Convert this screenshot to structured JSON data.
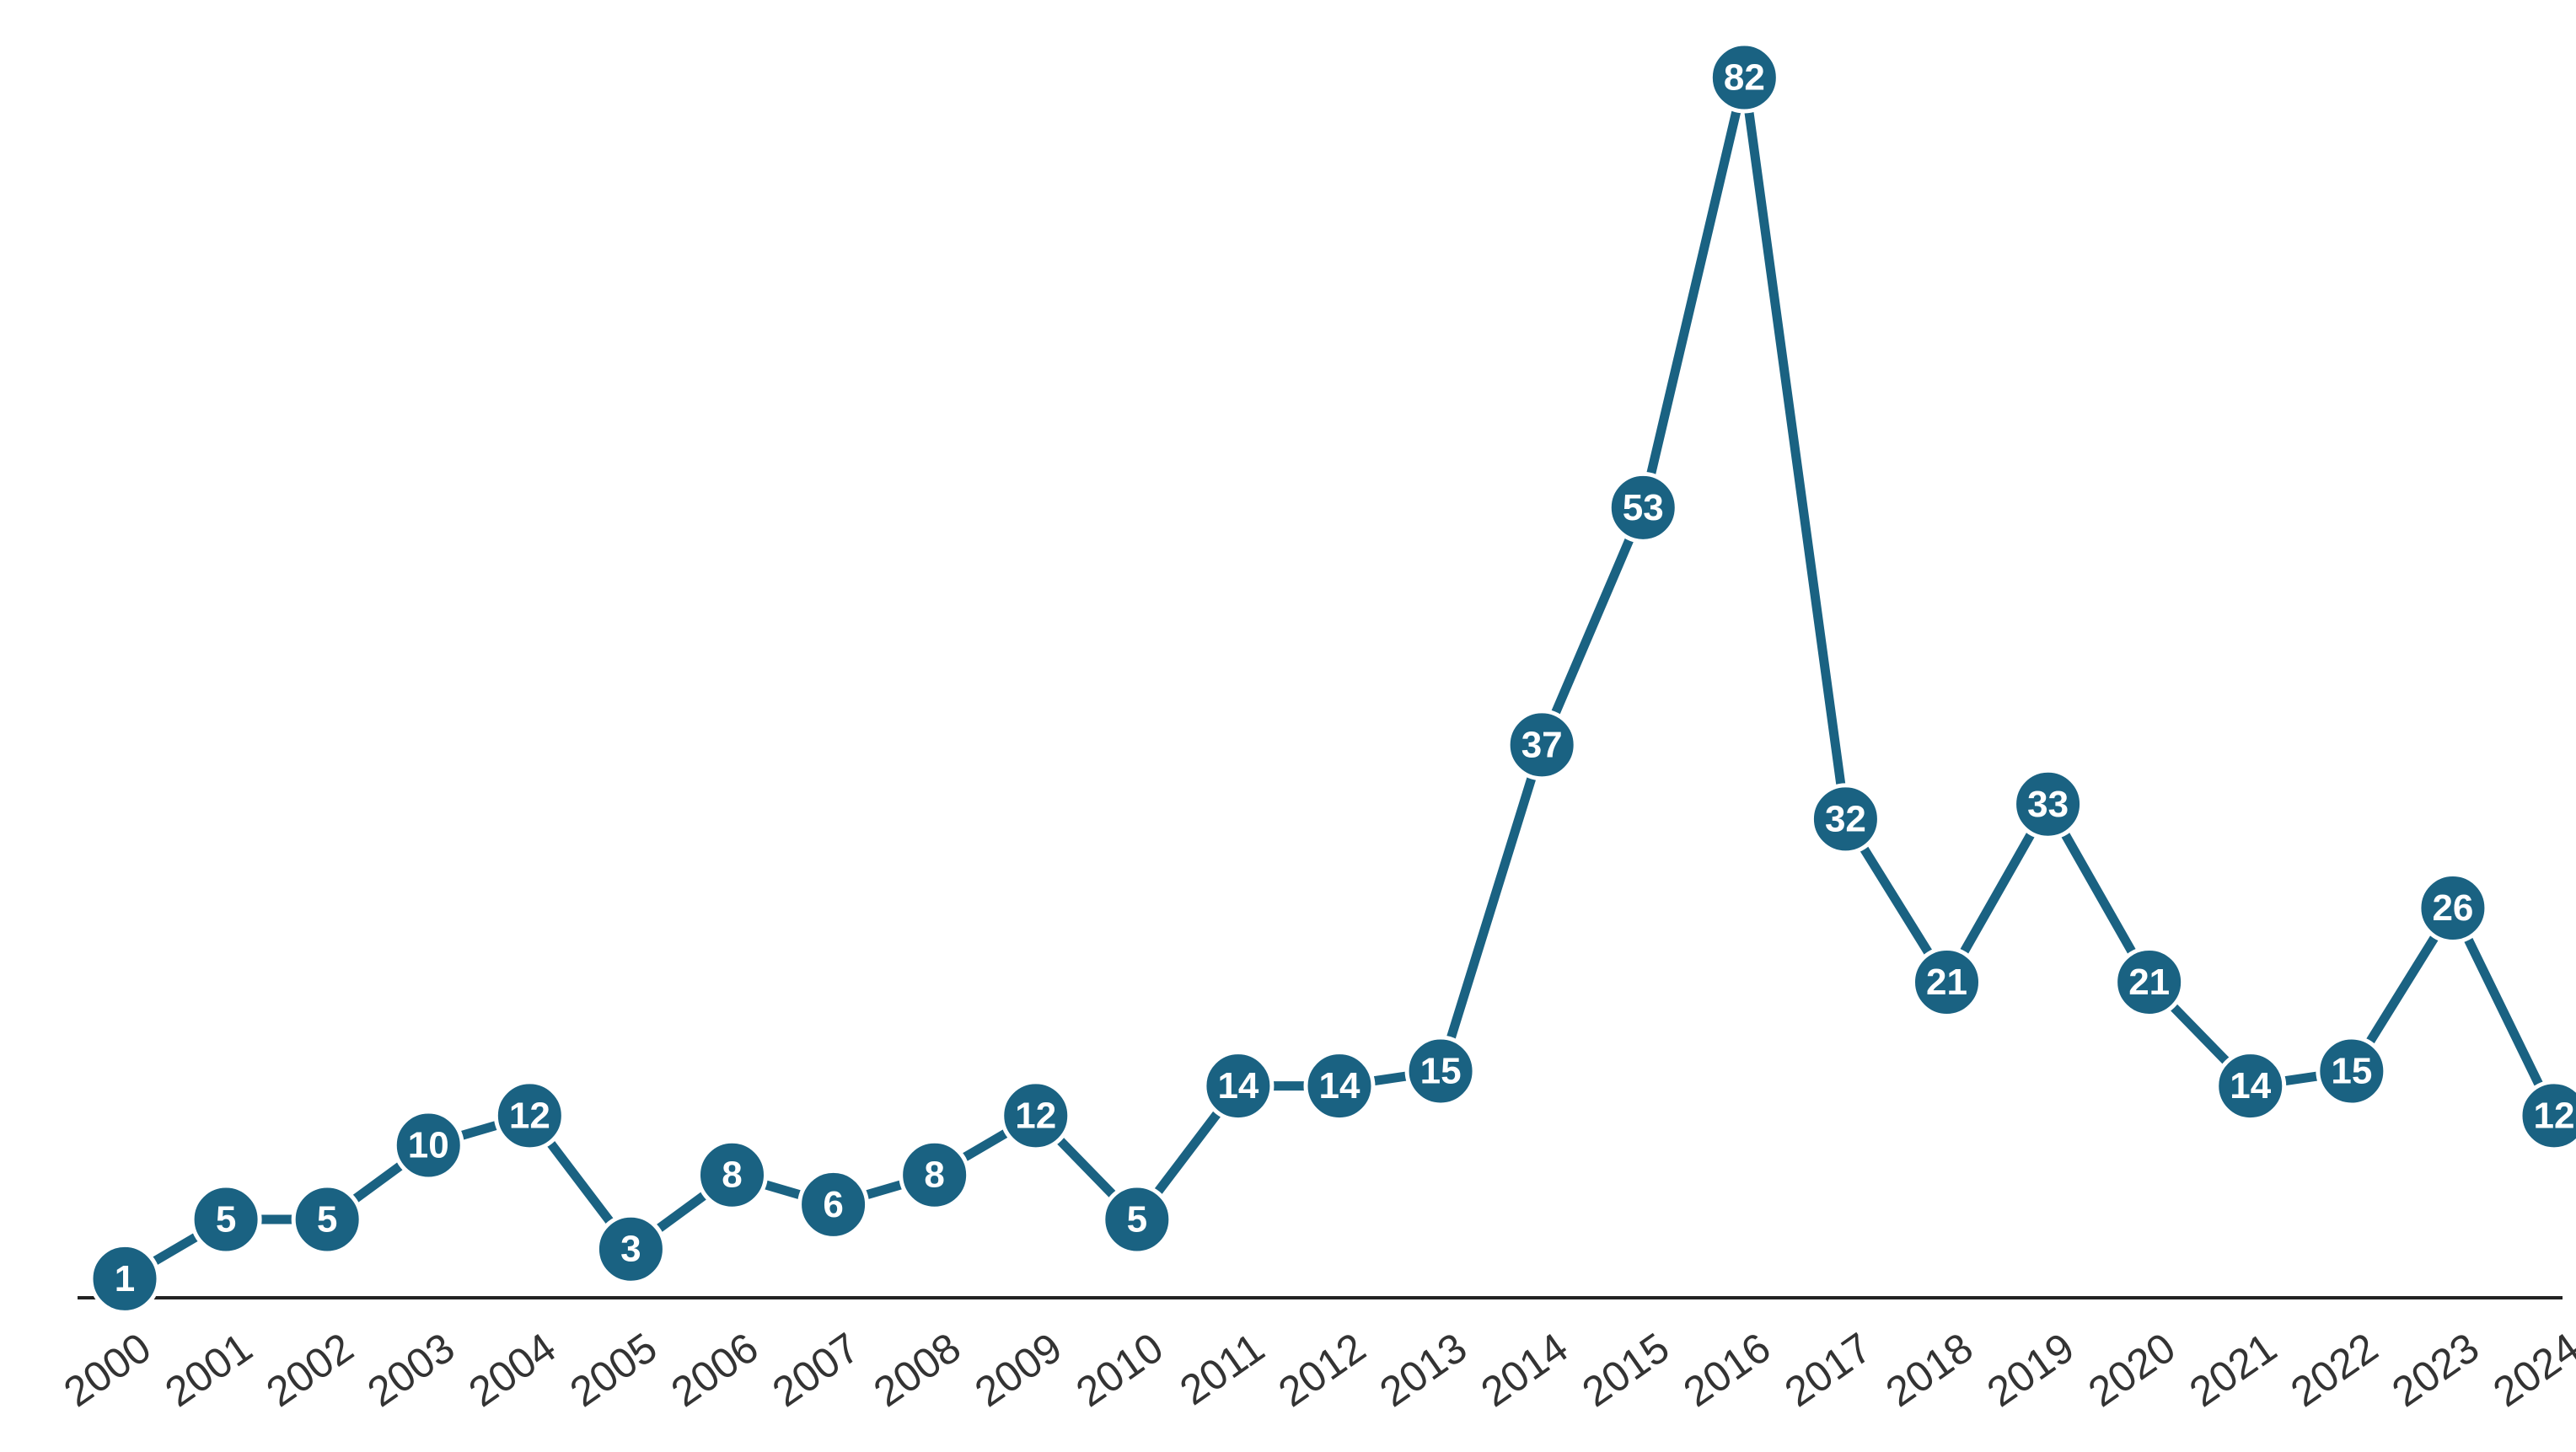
{
  "chart_data": {
    "type": "line",
    "title": "",
    "xlabel": "",
    "ylabel": "",
    "x": [
      "2000",
      "2001",
      "2002",
      "2003",
      "2004",
      "2005",
      "2006",
      "2007",
      "2008",
      "2009",
      "2010",
      "2011",
      "2012",
      "2013",
      "2014",
      "2015",
      "2016",
      "2017",
      "2018",
      "2019",
      "2020",
      "2021",
      "2022",
      "2023",
      "2024"
    ],
    "series": [
      {
        "values": [
          1,
          5,
          5,
          10,
          12,
          3,
          8,
          6,
          8,
          12,
          5,
          14,
          14,
          15,
          37,
          53,
          82,
          32,
          21,
          33,
          21,
          14,
          15,
          26,
          12
        ]
      }
    ],
    "ylim": [
      0,
      82
    ],
    "grid": false,
    "legend": "none",
    "data_labels": true
  },
  "colors": {
    "series": "#1a6282",
    "marker_outline": "#ffffff",
    "label_text": "#ffffff",
    "baseline": "#222222",
    "tick_text": "#333333"
  }
}
